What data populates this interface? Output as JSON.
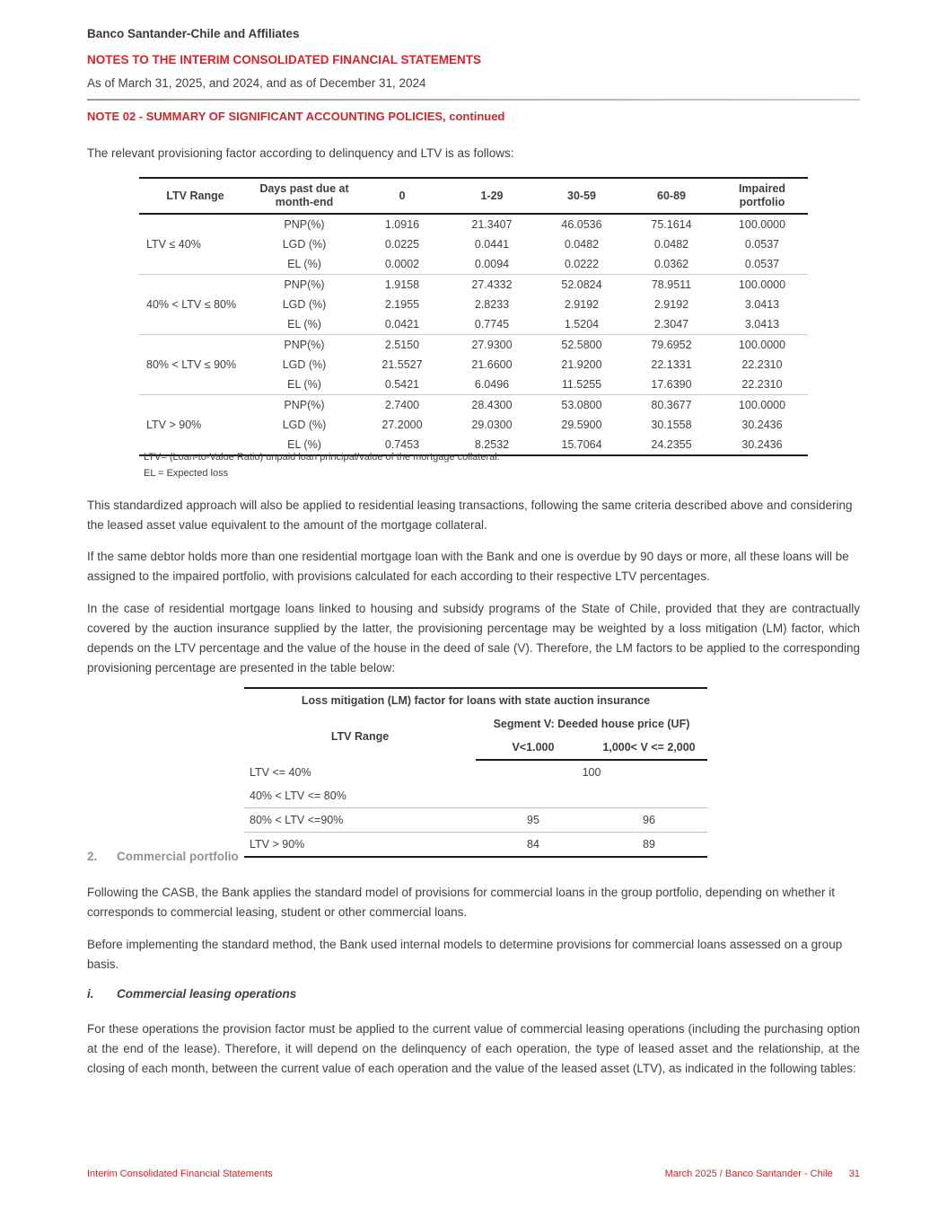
{
  "header": {
    "company": "Banco Santander-Chile and Affiliates",
    "title": "NOTES TO THE INTERIM CONSOLIDATED FINANCIAL STATEMENTS",
    "date_line": "As of  March 31, 2025, and 2024, and as of December 31, 2024"
  },
  "note_title": "NOTE 02 - SUMMARY OF SIGNIFICANT ACCOUNTING POLICIES, continued",
  "intro": "The relevant provisioning factor according to delinquency and LTV is as follows:",
  "colors": {
    "accent_red": "#d0262c",
    "body_text": "#3f3f3f",
    "section_gray": "#8f9193"
  },
  "provisioning_table": {
    "columns": [
      "LTV Range",
      "Days past due at month-end",
      "0",
      "1-29",
      "30-59",
      "60-89",
      "Impaired portfolio"
    ],
    "groups": [
      {
        "range": "LTV ≤ 40%",
        "rows": [
          {
            "metric": "PNP(%)",
            "values": [
              "1.0916",
              "21.3407",
              "46.0536",
              "75.1614",
              "100.0000"
            ]
          },
          {
            "metric": "LGD (%)",
            "values": [
              "0.0225",
              "0.0441",
              "0.0482",
              "0.0482",
              "0.0537"
            ]
          },
          {
            "metric": "EL (%)",
            "values": [
              "0.0002",
              "0.0094",
              "0.0222",
              "0.0362",
              "0.0537"
            ]
          }
        ]
      },
      {
        "range": "40% < LTV ≤ 80%",
        "rows": [
          {
            "metric": "PNP(%)",
            "values": [
              "1.9158",
              "27.4332",
              "52.0824",
              "78.9511",
              "100.0000"
            ]
          },
          {
            "metric": "LGD (%)",
            "values": [
              "2.1955",
              "2.8233",
              "2.9192",
              "2.9192",
              "3.0413"
            ]
          },
          {
            "metric": "EL (%)",
            "values": [
              "0.0421",
              "0.7745",
              "1.5204",
              "2.3047",
              "3.0413"
            ]
          }
        ]
      },
      {
        "range": "80% < LTV ≤ 90%",
        "rows": [
          {
            "metric": "PNP(%)",
            "values": [
              "2.5150",
              "27.9300",
              "52.5800",
              "79.6952",
              "100.0000"
            ]
          },
          {
            "metric": "LGD (%)",
            "values": [
              "21.5527",
              "21.6600",
              "21.9200",
              "22.1331",
              "22.2310"
            ]
          },
          {
            "metric": "EL (%)",
            "values": [
              "0.5421",
              "6.0496",
              "11.5255",
              "17.6390",
              "22.2310"
            ]
          }
        ]
      },
      {
        "range": "LTV > 90%",
        "rows": [
          {
            "metric": "PNP(%)",
            "values": [
              "2.7400",
              "28.4300",
              "53.0800",
              "80.3677",
              "100.0000"
            ]
          },
          {
            "metric": "LGD (%)",
            "values": [
              "27.2000",
              "29.0300",
              "29.5900",
              "30.1558",
              "30.2436"
            ]
          },
          {
            "metric": "EL (%)",
            "values": [
              "0.7453",
              "8.2532",
              "15.7064",
              "24.2355",
              "30.2436"
            ]
          }
        ]
      }
    ],
    "footnotes": [
      "LTV= (Loan-to-Value Ratio) unpaid loan principal/value of the mortgage collateral.",
      "EL = Expected loss"
    ]
  },
  "paragraphs": {
    "p1": "This standardized approach will also be applied to residential leasing transactions, following the same criteria described above and considering the leased asset value equivalent to the amount of the mortgage collateral.",
    "p2": "If the same debtor holds more than one residential mortgage loan with the Bank and one is overdue by 90 days or more, all these loans will be assigned to the impaired portfolio, with provisions calculated for each according to their respective LTV percentages.",
    "p3": "In the case of residential mortgage loans linked to housing and subsidy programs of the State of Chile, provided that they are contractually covered by the auction insurance supplied by the latter, the provisioning percentage may be weighted by a loss mitigation (LM) factor, which depends on the LTV percentage and the value of the house in the deed of sale (V). Therefore, the LM factors to be applied to the corresponding provisioning percentage are presented in the table below:"
  },
  "lm_table": {
    "title": "Loss mitigation (LM) factor for loans with state auction insurance",
    "range_header": "LTV Range",
    "segment_header": "Segment V: Deeded house price (UF)",
    "sub_columns": [
      "V<1.000",
      "1,000< V <= 2,000"
    ],
    "rows": [
      {
        "range": "LTV <= 40%",
        "values": [
          "100"
        ],
        "colspan": 2
      },
      {
        "range": "40% < LTV <= 80%",
        "values": [
          "",
          ""
        ]
      },
      {
        "range": "80% < LTV <=90%",
        "values": [
          "95",
          "96"
        ],
        "sep": true
      },
      {
        "range": "LTV > 90%",
        "values": [
          "84",
          "89"
        ],
        "sep": true
      }
    ]
  },
  "section2": {
    "number": "2.",
    "title": "Commercial portfolio",
    "p1": "Following the CASB, the Bank applies the standard model of provisions for commercial loans in the group portfolio, depending on whether it corresponds to commercial leasing, student or other commercial loans.",
    "p2": "Before implementing the standard method, the Bank used internal models to determine provisions for commercial loans assessed on a group basis."
  },
  "subsection_i": {
    "number": "i.",
    "title": "Commercial leasing operations",
    "p1": "For these operations the provision factor must be applied to the current value of commercial leasing operations (including the purchasing option at the end of the lease). Therefore, it will depend on the delinquency of each operation, the type of leased asset and the relationship, at the closing of each month, between the current value of each operation and the value of the leased asset (LTV), as indicated in the following tables:"
  },
  "footer": {
    "left": "Interim Consolidated Financial Statements",
    "right": "March 2025 / Banco Santander - Chile",
    "page": "31"
  }
}
